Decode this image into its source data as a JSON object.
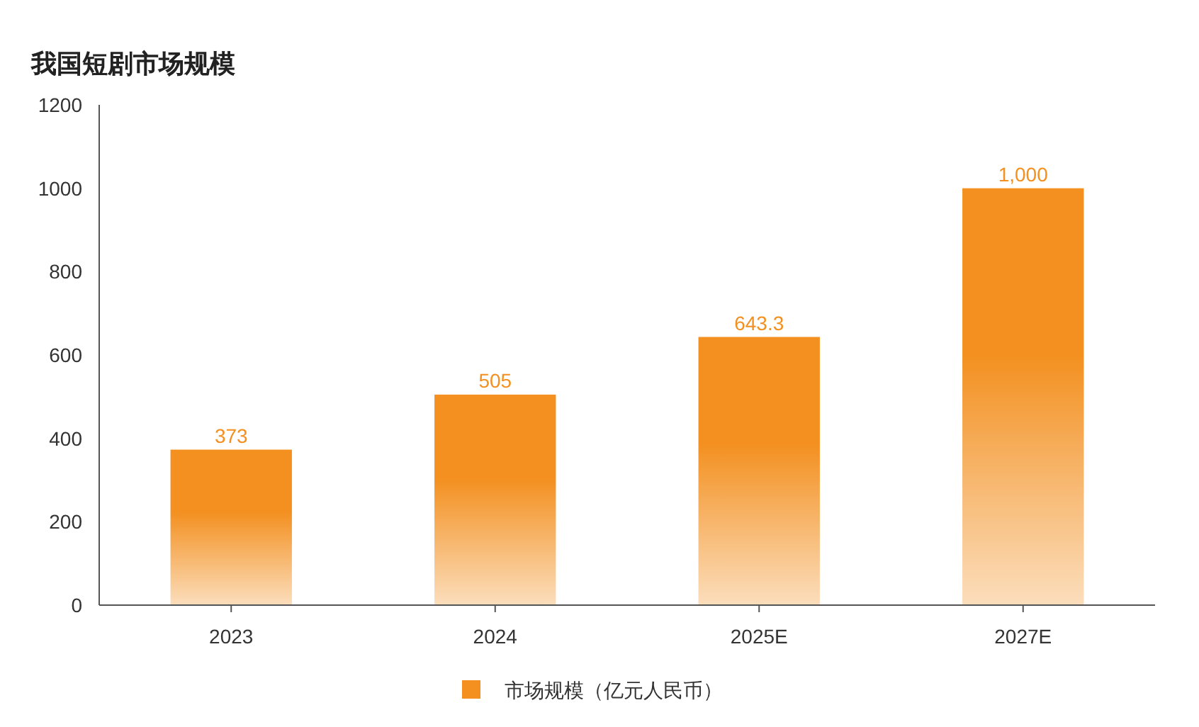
{
  "chart_data": {
    "type": "bar",
    "title": "我国短剧市场规模",
    "categories": [
      "2023",
      "2024",
      "2025E",
      "2027E"
    ],
    "series": [
      {
        "name": "市场规模（亿元人民币）",
        "color": "#f39020",
        "values": [
          373,
          505,
          643.3,
          1000
        ],
        "value_labels": [
          "373",
          "505",
          "643.3",
          "1,000"
        ]
      }
    ],
    "ylim": [
      0,
      1200
    ],
    "yticks": [
      0,
      200,
      400,
      600,
      800,
      1000,
      1200
    ],
    "grid": false,
    "legend": "bottom"
  }
}
